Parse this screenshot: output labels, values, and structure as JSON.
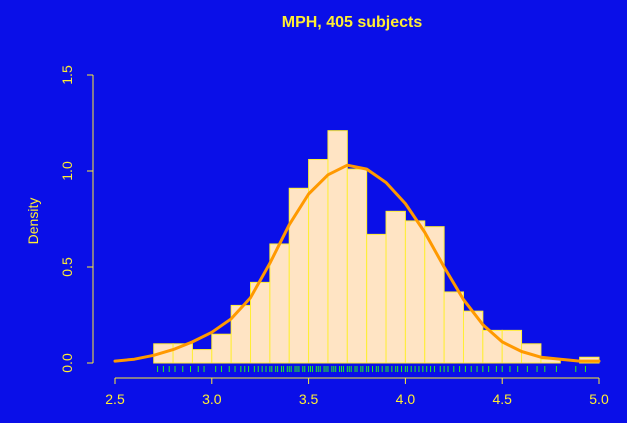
{
  "chart_data": {
    "type": "bar",
    "title": "MPH, 405 subjects",
    "xlabel": "",
    "ylabel": "Density",
    "xlim": [
      2.5,
      5.0
    ],
    "ylim": [
      0.0,
      1.5
    ],
    "x_ticks": [
      "2.5",
      "3.0",
      "3.5",
      "4.0",
      "4.5",
      "5.0"
    ],
    "y_ticks": [
      "0.0",
      "0.5",
      "1.0",
      "1.5"
    ],
    "bin_width": 0.1,
    "bin_starts": [
      2.7,
      2.8,
      2.9,
      3.0,
      3.1,
      3.2,
      3.3,
      3.4,
      3.5,
      3.6,
      3.7,
      3.8,
      3.9,
      4.0,
      4.1,
      4.2,
      4.3,
      4.4,
      4.5,
      4.6,
      4.7,
      4.8,
      4.9
    ],
    "density": [
      0.1,
      0.1,
      0.07,
      0.15,
      0.3,
      0.42,
      0.62,
      0.91,
      1.06,
      1.21,
      1.01,
      0.67,
      0.79,
      0.74,
      0.71,
      0.37,
      0.27,
      0.17,
      0.17,
      0.1,
      0.02,
      0.0,
      0.03
    ],
    "density_curve": {
      "x": [
        2.5,
        2.6,
        2.7,
        2.8,
        2.9,
        3.0,
        3.1,
        3.2,
        3.3,
        3.4,
        3.5,
        3.6,
        3.7,
        3.8,
        3.9,
        4.0,
        4.1,
        4.2,
        4.3,
        4.4,
        4.5,
        4.6,
        4.7,
        4.8,
        4.9,
        5.0
      ],
      "y": [
        0.01,
        0.02,
        0.04,
        0.07,
        0.11,
        0.16,
        0.23,
        0.34,
        0.52,
        0.72,
        0.88,
        0.98,
        1.03,
        1.01,
        0.94,
        0.83,
        0.68,
        0.5,
        0.33,
        0.2,
        0.11,
        0.06,
        0.03,
        0.02,
        0.01,
        0.01
      ]
    },
    "rug": [
      2.72,
      2.75,
      2.78,
      2.81,
      2.85,
      2.89,
      2.93,
      2.96,
      3.02,
      3.05,
      3.09,
      3.12,
      3.15,
      3.17,
      3.19,
      3.22,
      3.24,
      3.26,
      3.28,
      3.3,
      3.31,
      3.33,
      3.34,
      3.36,
      3.37,
      3.39,
      3.4,
      3.41,
      3.43,
      3.44,
      3.45,
      3.47,
      3.48,
      3.5,
      3.51,
      3.52,
      3.54,
      3.55,
      3.56,
      3.58,
      3.59,
      3.6,
      3.62,
      3.63,
      3.64,
      3.66,
      3.67,
      3.68,
      3.7,
      3.71,
      3.72,
      3.74,
      3.75,
      3.77,
      3.78,
      3.8,
      3.81,
      3.83,
      3.85,
      3.86,
      3.88,
      3.9,
      3.91,
      3.93,
      3.95,
      3.96,
      3.98,
      4.0,
      4.01,
      4.03,
      4.05,
      4.07,
      4.09,
      4.11,
      4.13,
      4.15,
      4.18,
      4.2,
      4.22,
      4.25,
      4.28,
      4.31,
      4.34,
      4.37,
      4.4,
      4.43,
      4.47,
      4.5,
      4.54,
      4.58,
      4.63,
      4.68,
      4.72,
      4.78,
      4.88,
      4.93
    ],
    "grid": false,
    "colors": {
      "background": "#0a0fe8",
      "bar_fill": "#ffe4c4",
      "bar_edge": "#ffee33",
      "curve": "#ff9900",
      "rug": "#22ee22",
      "text": "#ffee33",
      "axis": "#ffee33"
    }
  }
}
